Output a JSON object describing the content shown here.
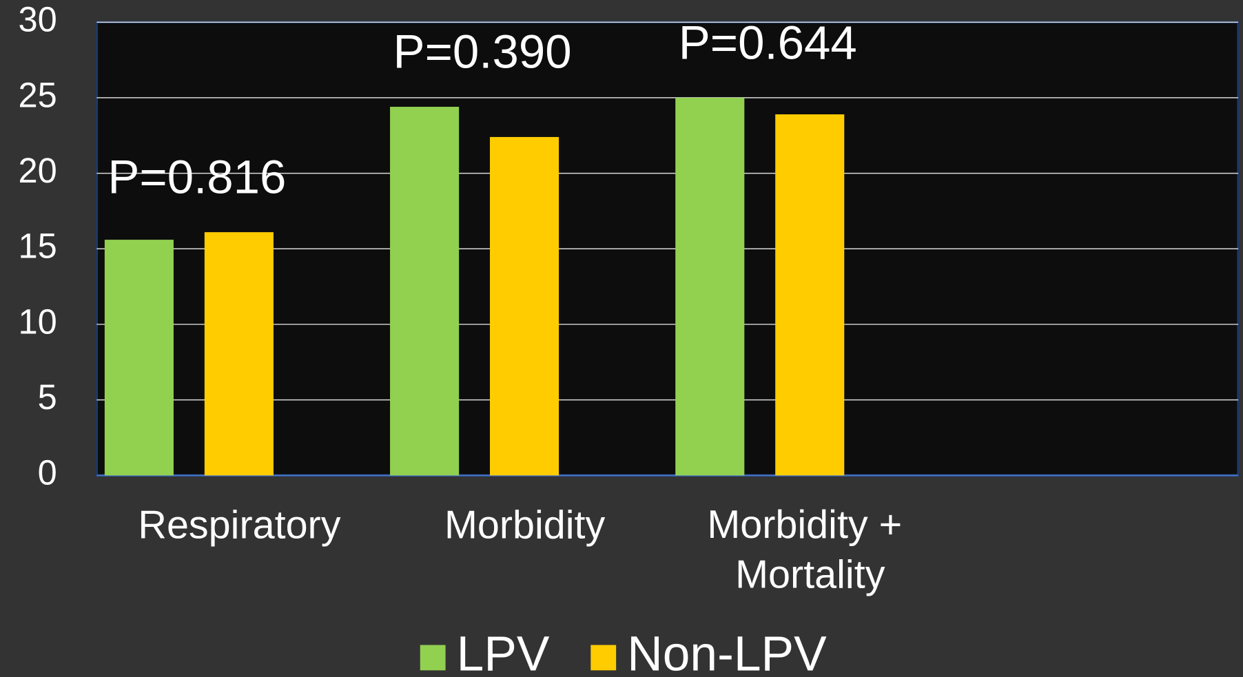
{
  "chart_data": {
    "type": "bar",
    "categories": [
      "Respiratory",
      "Morbidity",
      "Morbidity + Mortality",
      null
    ],
    "series": [
      {
        "name": "LPV",
        "color": "#92d050",
        "values": [
          15.6,
          24.4,
          25.0,
          null
        ]
      },
      {
        "name": "Non-LPV",
        "color": "#ffcc00",
        "values": [
          16.1,
          22.4,
          23.9,
          null
        ]
      }
    ],
    "annotations": [
      "P=0.816",
      "P=0.390",
      "P=0.644"
    ],
    "ylim": [
      0,
      30
    ],
    "yticks": [
      0,
      5,
      10,
      15,
      20,
      25,
      30
    ],
    "grid": true,
    "legend": "bottom"
  }
}
